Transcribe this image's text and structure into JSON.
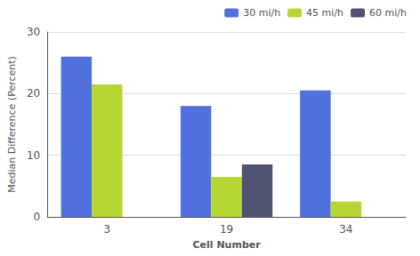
{
  "chart_data": {
    "type": "bar",
    "categories": [
      "3",
      "19",
      "34"
    ],
    "series": [
      {
        "name": "30 mi/h",
        "values": [
          26.0,
          18.0,
          20.5
        ]
      },
      {
        "name": "45 mi/h",
        "values": [
          21.5,
          6.5,
          2.5
        ]
      },
      {
        "name": "60 mi/h",
        "values": [
          null,
          8.5,
          null
        ]
      }
    ],
    "xlabel": "Cell Number",
    "ylabel": "Median Difference (Percent)",
    "ylim": [
      0,
      30
    ],
    "yticks": [
      0,
      10,
      20,
      30
    ],
    "grid": true,
    "legend": "upper right"
  }
}
